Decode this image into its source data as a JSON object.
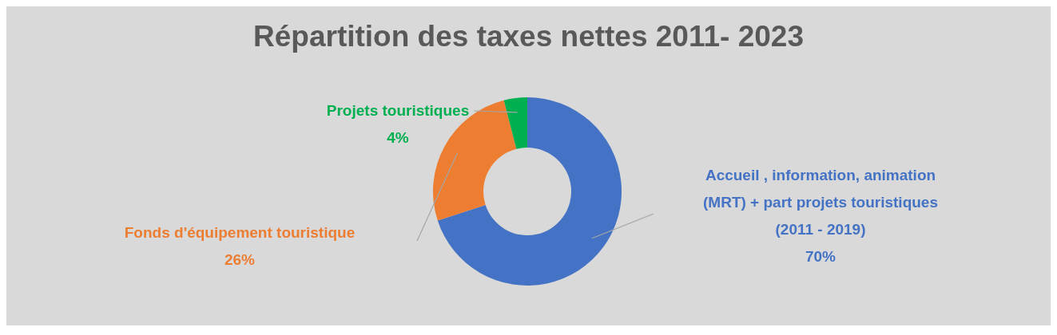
{
  "chart_data": {
    "type": "donut",
    "title": "Répartition des taxes nettes 2011- 2023",
    "categories": [
      "Accueil , information, animation (MRT) + part projets touristiques (2011 - 2019)",
      "Fonds d'équipement touristique",
      "Projets touristiques"
    ],
    "values": [
      70,
      26,
      4
    ],
    "colors": [
      "#4472c4",
      "#ed7d31",
      "#00b050"
    ],
    "value_labels": [
      "70%",
      "26%",
      "4%"
    ],
    "legend": false
  }
}
